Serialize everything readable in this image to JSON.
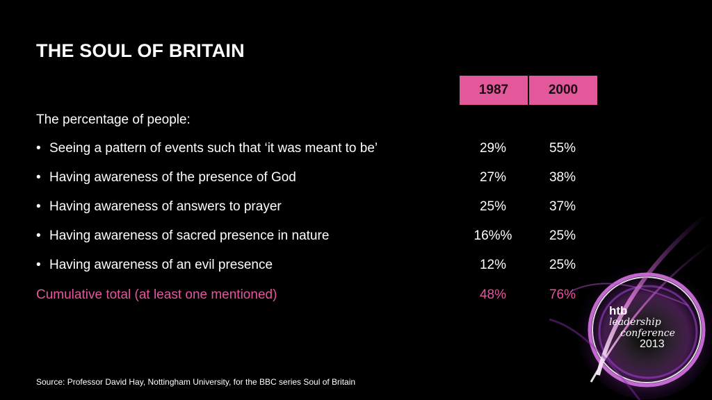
{
  "title": "THE SOUL OF BRITAIN",
  "columns": [
    "1987",
    "2000"
  ],
  "intro": "The percentage of people:",
  "bullet_char": "•",
  "rows": [
    {
      "label": "Seeing a pattern of events such that ‘it was meant to be’",
      "v1987": "29%",
      "v2000": "55%"
    },
    {
      "label": "Having awareness of the presence of God",
      "v1987": "27%",
      "v2000": "38%"
    },
    {
      "label": "Having awareness of answers to prayer",
      "v1987": "25%",
      "v2000": "37%"
    },
    {
      "label": "Having awareness of sacred presence in nature",
      "v1987": "16%%",
      "v2000": "25%"
    },
    {
      "label": "Having awareness of an evil presence",
      "v1987": "12%",
      "v2000": "25%"
    }
  ],
  "total": {
    "label": "Cumulative total (at least one mentioned)",
    "v1987": "48%",
    "v2000": "76%"
  },
  "source": "Source: Professor David Hay, Nottingham University, for the BBC series Soul of Britain",
  "logo": {
    "line1": "htb",
    "line2": "leadership",
    "line3": "conference",
    "line4": "2013"
  },
  "colors": {
    "background": "#000000",
    "accent": "#e2589b",
    "text": "#ffffff"
  }
}
